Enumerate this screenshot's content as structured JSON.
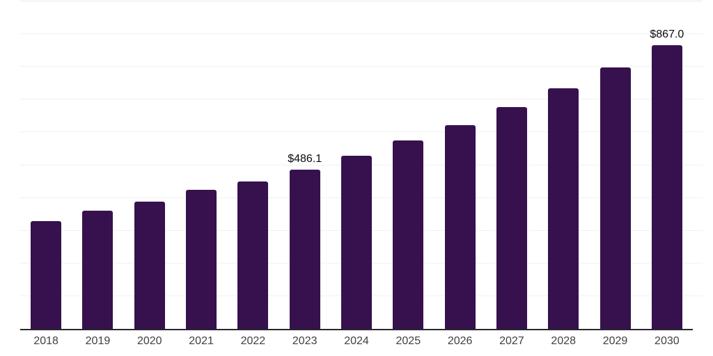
{
  "chart_data": {
    "type": "bar",
    "title": "",
    "xlabel": "",
    "ylabel": "",
    "categories": [
      "2018",
      "2019",
      "2020",
      "2021",
      "2022",
      "2023",
      "2024",
      "2025",
      "2026",
      "2027",
      "2028",
      "2029",
      "2030"
    ],
    "values": [
      330,
      362,
      388,
      424,
      450,
      486.1,
      529,
      576,
      622,
      678,
      735,
      798,
      867
    ],
    "data_labels": [
      "",
      "",
      "",
      "",
      "",
      "$486.1",
      "",
      "",
      "",
      "",
      "",
      "",
      "$867.0"
    ],
    "ylim": [
      0,
      1000
    ],
    "gridline_step": 100,
    "grid_on": true,
    "legend": "none",
    "colors": {
      "bar": "#36114E",
      "gridline": "#f1f1f1",
      "gridline_top": "#e7e7e7",
      "axis_line": "#26262e",
      "value_label": "#0a0a0a",
      "tick_label": "#404040",
      "background": "#ffffff"
    }
  }
}
